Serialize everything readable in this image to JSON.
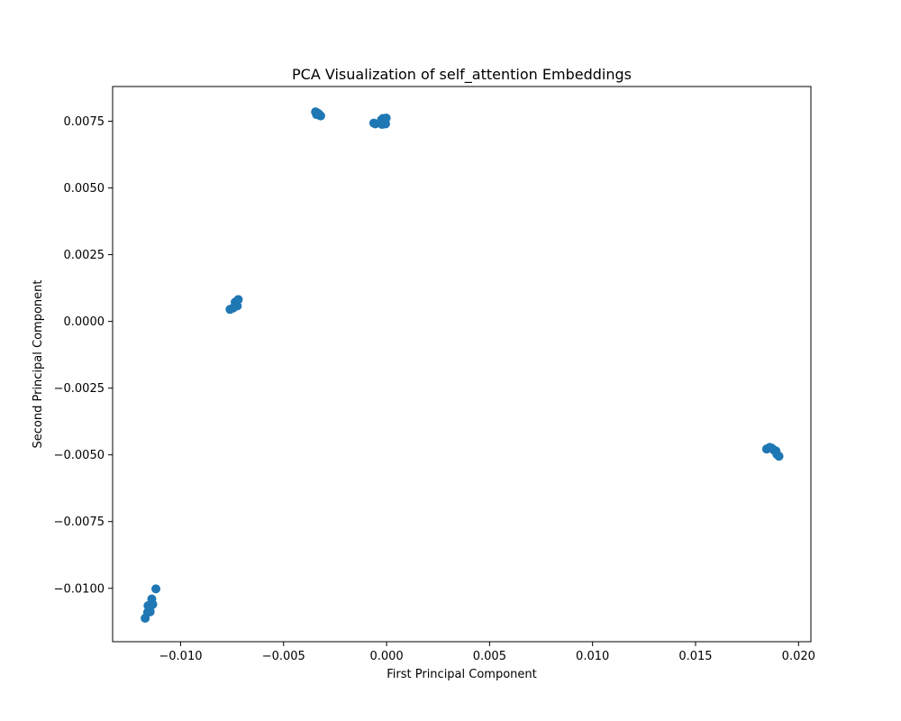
{
  "chart_data": {
    "type": "scatter",
    "title": "PCA Visualization of self_attention Embeddings",
    "xlabel": "First Principal Component",
    "ylabel": "Second Principal Component",
    "xlim": [
      -0.0133,
      0.0206
    ],
    "ylim": [
      -0.012,
      0.0088
    ],
    "grid": false,
    "legend": "none",
    "point_color": "#1f77b4",
    "x_ticks": [
      {
        "value": -0.01,
        "label": "−0.010"
      },
      {
        "value": -0.005,
        "label": "−0.005"
      },
      {
        "value": 0.0,
        "label": "0.000"
      },
      {
        "value": 0.005,
        "label": "0.005"
      },
      {
        "value": 0.01,
        "label": "0.010"
      },
      {
        "value": 0.015,
        "label": "0.015"
      },
      {
        "value": 0.02,
        "label": "0.020"
      }
    ],
    "y_ticks": [
      {
        "value": 0.0075,
        "label": "0.0075"
      },
      {
        "value": 0.005,
        "label": "0.0050"
      },
      {
        "value": 0.0025,
        "label": "0.0025"
      },
      {
        "value": 0.0,
        "label": "0.0000"
      },
      {
        "value": -0.0025,
        "label": "−0.0025"
      },
      {
        "value": -0.005,
        "label": "−0.0050"
      },
      {
        "value": -0.0075,
        "label": "−0.0075"
      },
      {
        "value": -0.01,
        "label": "−0.0100"
      }
    ],
    "points": [
      {
        "x": -0.00345,
        "y": 0.00785
      },
      {
        "x": -0.00335,
        "y": 0.0078
      },
      {
        "x": -0.0034,
        "y": 0.00775
      },
      {
        "x": -0.0033,
        "y": 0.00778
      },
      {
        "x": -0.00325,
        "y": 0.00772
      },
      {
        "x": -0.0032,
        "y": 0.0077
      },
      {
        "x": -0.00338,
        "y": 0.00782
      },
      {
        "x": -0.00062,
        "y": 0.00743
      },
      {
        "x": -0.00055,
        "y": 0.0074
      },
      {
        "x": -0.00025,
        "y": 0.00755
      },
      {
        "x": -0.00018,
        "y": 0.0076
      },
      {
        "x": -8e-05,
        "y": 0.00752
      },
      {
        "x": -2e-05,
        "y": 0.00762
      },
      {
        "x": -0.00022,
        "y": 0.00738
      },
      {
        "x": -5e-05,
        "y": 0.0074
      },
      {
        "x": -0.00015,
        "y": 0.00745
      },
      {
        "x": -0.0076,
        "y": 0.00045
      },
      {
        "x": -0.00745,
        "y": 0.0005
      },
      {
        "x": -0.00735,
        "y": 0.00072
      },
      {
        "x": -0.00725,
        "y": 0.00058
      },
      {
        "x": -0.0072,
        "y": 0.00082
      },
      {
        "x": 0.01845,
        "y": -0.00478
      },
      {
        "x": 0.0186,
        "y": -0.00472
      },
      {
        "x": 0.0187,
        "y": -0.00475
      },
      {
        "x": 0.0188,
        "y": -0.00482
      },
      {
        "x": 0.0189,
        "y": -0.00485
      },
      {
        "x": 0.01895,
        "y": -0.00498
      },
      {
        "x": 0.01905,
        "y": -0.00505
      },
      {
        "x": -0.0112,
        "y": -0.01002
      },
      {
        "x": -0.0114,
        "y": -0.0104
      },
      {
        "x": -0.01135,
        "y": -0.0106
      },
      {
        "x": -0.01158,
        "y": -0.01065
      },
      {
        "x": -0.0115,
        "y": -0.0108
      },
      {
        "x": -0.0116,
        "y": -0.0109
      },
      {
        "x": -0.01148,
        "y": -0.01088
      },
      {
        "x": -0.01172,
        "y": -0.01112
      }
    ]
  }
}
